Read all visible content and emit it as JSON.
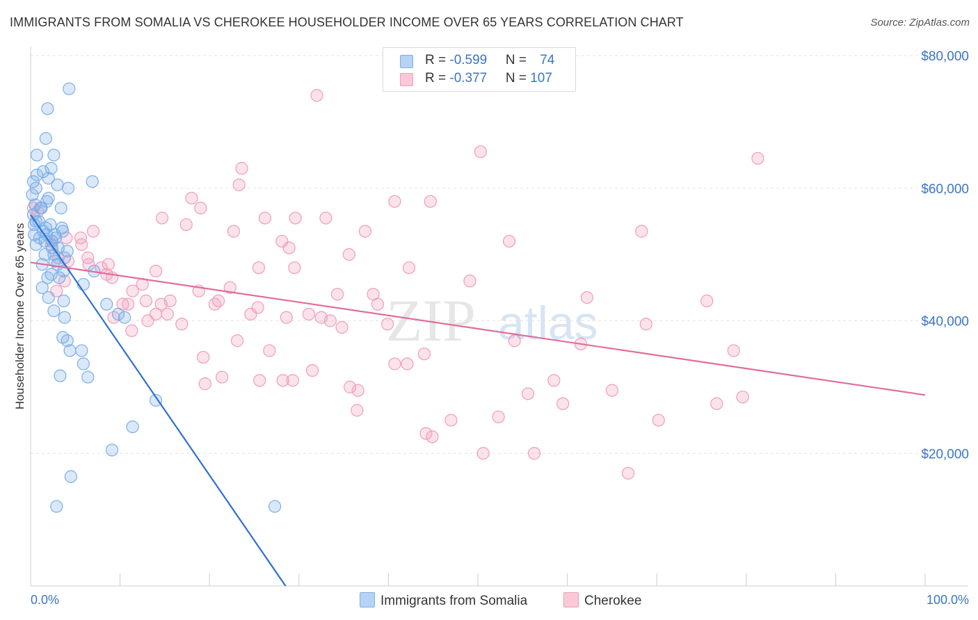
{
  "title": "IMMIGRANTS FROM SOMALIA VS CHEROKEE HOUSEHOLDER INCOME OVER 65 YEARS CORRELATION CHART",
  "source": "Source: ZipAtlas.com",
  "watermark": {
    "part1": "ZIP",
    "part2": "atlas"
  },
  "colors": {
    "blue": "#7aaee8",
    "blue_line": "#2e6fcf",
    "pink": "#f29bb8",
    "pink_line": "#e06d99",
    "axis_text": "#3a75c4"
  },
  "legend": {
    "rows": [
      {
        "r_label": "R = ",
        "r_value": "-0.599",
        "n_label": "N = ",
        "n_value": "74"
      },
      {
        "r_label": "R = ",
        "r_value": "-0.377",
        "n_label": "N = ",
        "n_value": "107"
      }
    ]
  },
  "bottom_legend": {
    "series1": "Immigrants from Somalia",
    "series2": "Cherokee"
  },
  "chart_data": {
    "type": "scatter",
    "title": "IMMIGRANTS FROM SOMALIA VS CHEROKEE HOUSEHOLDER INCOME OVER 65 YEARS CORRELATION CHART",
    "xlabel": "",
    "ylabel": "Householder Income Over 65 years",
    "xlim": [
      0,
      100
    ],
    "ylim": [
      0,
      80000
    ],
    "x_tick_labels": [
      "0.0%",
      "100.0%"
    ],
    "y_ticks": [
      20000,
      40000,
      60000,
      80000
    ],
    "y_tick_labels": [
      "$20,000",
      "$40,000",
      "$60,000",
      "$80,000"
    ],
    "grid": true,
    "legend_position": "top-center",
    "series": [
      {
        "name": "Immigrants from Somalia",
        "color": "#7aaee8",
        "R": -0.599,
        "N": 74,
        "trend": {
          "x": [
            0,
            28.5
          ],
          "y": [
            56000,
            0
          ]
        },
        "points": [
          [
            4.3,
            75000
          ],
          [
            1.9,
            72000
          ],
          [
            1.7,
            67500
          ],
          [
            0.7,
            65000
          ],
          [
            2.6,
            65000
          ],
          [
            0.7,
            62000
          ],
          [
            2.0,
            61500
          ],
          [
            1.4,
            62500
          ],
          [
            2.3,
            63000
          ],
          [
            6.9,
            61000
          ],
          [
            0.3,
            61000
          ],
          [
            0.6,
            60000
          ],
          [
            3.0,
            60500
          ],
          [
            4.2,
            60000
          ],
          [
            0.2,
            59000
          ],
          [
            1.1,
            57000
          ],
          [
            1.8,
            58000
          ],
          [
            2.0,
            58500
          ],
          [
            0.5,
            57500
          ],
          [
            3.4,
            57000
          ],
          [
            0.3,
            56000
          ],
          [
            0.6,
            55000
          ],
          [
            1.7,
            54000
          ],
          [
            2.2,
            54500
          ],
          [
            3.5,
            54000
          ],
          [
            0.4,
            53000
          ],
          [
            1.4,
            53500
          ],
          [
            2.7,
            53000
          ],
          [
            3.6,
            53500
          ],
          [
            1.0,
            52500
          ],
          [
            1.6,
            52000
          ],
          [
            2.8,
            52500
          ],
          [
            0.6,
            51500
          ],
          [
            2.4,
            51000
          ],
          [
            3.1,
            51000
          ],
          [
            4.1,
            50500
          ],
          [
            1.6,
            50000
          ],
          [
            2.6,
            50000
          ],
          [
            3.8,
            49500
          ],
          [
            1.3,
            48500
          ],
          [
            3.7,
            47500
          ],
          [
            7.1,
            47500
          ],
          [
            2.3,
            47000
          ],
          [
            1.9,
            46500
          ],
          [
            3.2,
            46500
          ],
          [
            5.9,
            45500
          ],
          [
            1.3,
            45000
          ],
          [
            2.0,
            43500
          ],
          [
            3.7,
            43000
          ],
          [
            8.5,
            42500
          ],
          [
            9.8,
            41000
          ],
          [
            2.6,
            41500
          ],
          [
            3.8,
            40500
          ],
          [
            10.5,
            40500
          ],
          [
            3.6,
            37500
          ],
          [
            4.1,
            37000
          ],
          [
            4.4,
            35500
          ],
          [
            5.7,
            35500
          ],
          [
            5.9,
            33500
          ],
          [
            6.4,
            31500
          ],
          [
            3.3,
            31700
          ],
          [
            14.0,
            28000
          ],
          [
            11.4,
            24000
          ],
          [
            9.1,
            20500
          ],
          [
            4.5,
            16500
          ],
          [
            2.9,
            12000
          ],
          [
            27.3,
            12000
          ],
          [
            0.9,
            55000
          ],
          [
            1.8,
            53000
          ],
          [
            2.4,
            52000
          ],
          [
            0.4,
            54500
          ],
          [
            3.0,
            48500
          ],
          [
            1.2,
            57000
          ],
          [
            2.7,
            49000
          ]
        ]
      },
      {
        "name": "Cherokee",
        "color": "#f29bb8",
        "R": -0.377,
        "N": 107,
        "trend": {
          "x": [
            0,
            100
          ],
          "y": [
            48800,
            28800
          ]
        },
        "points": [
          [
            32.0,
            74000
          ],
          [
            50.3,
            65500
          ],
          [
            81.3,
            64500
          ],
          [
            23.6,
            63000
          ],
          [
            23.3,
            60500
          ],
          [
            18.0,
            58500
          ],
          [
            40.7,
            58000
          ],
          [
            44.7,
            58000
          ],
          [
            19.0,
            57000
          ],
          [
            0.3,
            57000
          ],
          [
            0.8,
            56500
          ],
          [
            14.7,
            55500
          ],
          [
            17.4,
            54500
          ],
          [
            26.2,
            55500
          ],
          [
            29.6,
            55500
          ],
          [
            33.0,
            55500
          ],
          [
            7.0,
            53500
          ],
          [
            22.7,
            53500
          ],
          [
            37.4,
            53500
          ],
          [
            68.3,
            53500
          ],
          [
            4.0,
            52500
          ],
          [
            5.6,
            52500
          ],
          [
            53.5,
            52000
          ],
          [
            2.4,
            52000
          ],
          [
            2.3,
            51500
          ],
          [
            5.7,
            51500
          ],
          [
            28.9,
            51000
          ],
          [
            35.6,
            50000
          ],
          [
            3.1,
            49500
          ],
          [
            6.4,
            49500
          ],
          [
            4.2,
            49000
          ],
          [
            8.7,
            48500
          ],
          [
            7.9,
            48000
          ],
          [
            25.5,
            48000
          ],
          [
            29.5,
            48000
          ],
          [
            42.3,
            48000
          ],
          [
            14.0,
            47500
          ],
          [
            8.5,
            47000
          ],
          [
            3.8,
            46000
          ],
          [
            12.5,
            45500
          ],
          [
            22.3,
            45000
          ],
          [
            49.1,
            46000
          ],
          [
            11.4,
            44500
          ],
          [
            34.3,
            44000
          ],
          [
            38.3,
            44000
          ],
          [
            12.9,
            43000
          ],
          [
            14.6,
            42500
          ],
          [
            15.6,
            43000
          ],
          [
            21.0,
            43000
          ],
          [
            10.3,
            42500
          ],
          [
            10.9,
            42500
          ],
          [
            20.6,
            42500
          ],
          [
            38.8,
            42500
          ],
          [
            25.4,
            42000
          ],
          [
            62.2,
            43500
          ],
          [
            75.6,
            43000
          ],
          [
            15.3,
            41000
          ],
          [
            9.3,
            40500
          ],
          [
            14.0,
            41000
          ],
          [
            24.6,
            41000
          ],
          [
            28.6,
            40500
          ],
          [
            31.1,
            41000
          ],
          [
            32.5,
            40500
          ],
          [
            33.5,
            40000
          ],
          [
            13.1,
            40000
          ],
          [
            16.9,
            39500
          ],
          [
            34.8,
            39000
          ],
          [
            39.9,
            39500
          ],
          [
            68.8,
            39500
          ],
          [
            18.8,
            44500
          ],
          [
            11.3,
            38500
          ],
          [
            23.1,
            37000
          ],
          [
            54.1,
            37000
          ],
          [
            61.5,
            36500
          ],
          [
            78.6,
            35500
          ],
          [
            26.7,
            35500
          ],
          [
            44.0,
            35000
          ],
          [
            19.3,
            34500
          ],
          [
            40.7,
            33500
          ],
          [
            42.1,
            33500
          ],
          [
            31.5,
            32500
          ],
          [
            21.4,
            31500
          ],
          [
            58.5,
            31000
          ],
          [
            28.2,
            31000
          ],
          [
            25.6,
            31000
          ],
          [
            29.3,
            31000
          ],
          [
            19.5,
            30500
          ],
          [
            35.7,
            30000
          ],
          [
            36.6,
            29500
          ],
          [
            65.0,
            29500
          ],
          [
            55.6,
            29000
          ],
          [
            79.6,
            28500
          ],
          [
            59.5,
            27500
          ],
          [
            76.7,
            27500
          ],
          [
            36.5,
            26500
          ],
          [
            47.0,
            25000
          ],
          [
            52.3,
            25500
          ],
          [
            70.2,
            25000
          ],
          [
            44.2,
            23000
          ],
          [
            44.9,
            22500
          ],
          [
            50.6,
            20000
          ],
          [
            56.3,
            20000
          ],
          [
            66.8,
            17000
          ],
          [
            28.1,
            52000
          ],
          [
            9.1,
            46500
          ],
          [
            6.5,
            48500
          ],
          [
            2.9,
            44500
          ]
        ]
      }
    ]
  }
}
